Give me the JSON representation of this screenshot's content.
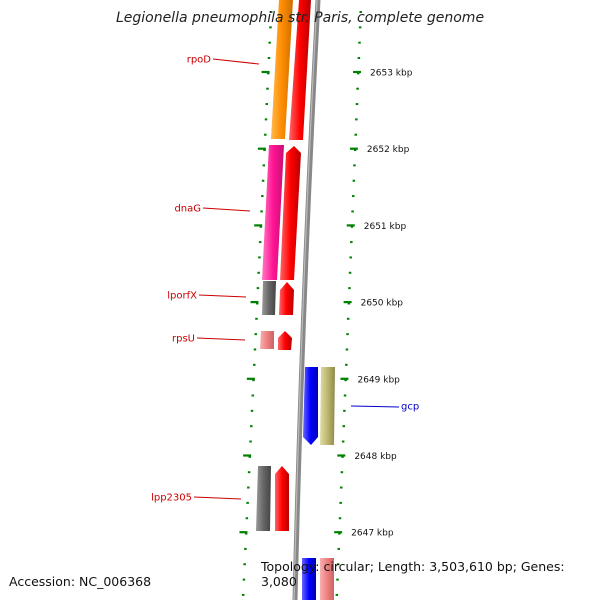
{
  "title": "Legionella pneumophila str. Paris, complete genome",
  "footer": {
    "accession": "Accession: NC_006368",
    "summary": "Topology: circular; Length: 3,503,610 bp; Genes: 3,080"
  },
  "ticks": [
    {
      "label": "2653 kbp",
      "kbp": 2653
    },
    {
      "label": "2652 kbp",
      "kbp": 2652
    },
    {
      "label": "2651 kbp",
      "kbp": 2651
    },
    {
      "label": "2650 kbp",
      "kbp": 2650
    },
    {
      "label": "2649 kbp",
      "kbp": 2649
    },
    {
      "label": "2648 kbp",
      "kbp": 2648
    },
    {
      "label": "2647 kbp",
      "kbp": 2647
    }
  ],
  "genes": [
    {
      "name": "rpoD",
      "strand": "minus",
      "color": "#ff8c00"
    },
    {
      "name": "dnaG",
      "strand": "minus",
      "color": "#ff1493"
    },
    {
      "name": "lporfX",
      "strand": "minus",
      "color": "#666666"
    },
    {
      "name": "rpsU",
      "strand": "minus",
      "color": "#f08080"
    },
    {
      "name": "gcp",
      "strand": "plus",
      "color": "#bdb76b"
    },
    {
      "name": "lpp2305",
      "strand": "minus",
      "color": "#666666"
    }
  ],
  "colors": {
    "minus_label": "#cc0000",
    "plus_label": "#0000cc",
    "cds": "#ff0000",
    "cds_plus": "#0000ff",
    "backbone": "#888888",
    "ticks": "#008000",
    "unnamed": "#f08080"
  }
}
